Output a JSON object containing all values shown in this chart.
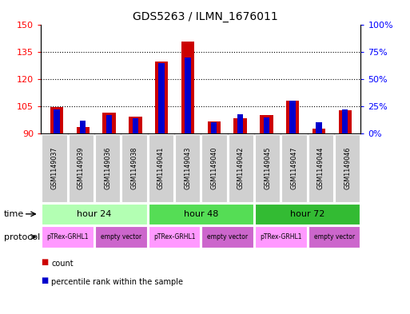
{
  "title": "GDS5263 / ILMN_1676011",
  "samples": [
    "GSM1149037",
    "GSM1149039",
    "GSM1149036",
    "GSM1149038",
    "GSM1149041",
    "GSM1149043",
    "GSM1149040",
    "GSM1149042",
    "GSM1149045",
    "GSM1149047",
    "GSM1149044",
    "GSM1149046"
  ],
  "count_values": [
    104.5,
    93.5,
    101.5,
    99.5,
    130.0,
    141.0,
    96.5,
    98.5,
    100.0,
    108.0,
    92.5,
    103.0
  ],
  "percentile_values": [
    22,
    12,
    17,
    14,
    65,
    70,
    10,
    18,
    15,
    30,
    10,
    22
  ],
  "ylim_left": [
    90,
    150
  ],
  "ylim_right": [
    0,
    100
  ],
  "yticks_left": [
    90,
    105,
    120,
    135,
    150
  ],
  "yticks_right": [
    0,
    25,
    50,
    75,
    100
  ],
  "bar_color_red": "#cc0000",
  "bar_color_blue": "#0000cc",
  "time_groups": [
    {
      "label": "hour 24",
      "start": 0,
      "end": 4,
      "color": "#b3ffb3"
    },
    {
      "label": "hour 48",
      "start": 4,
      "end": 8,
      "color": "#55dd55"
    },
    {
      "label": "hour 72",
      "start": 8,
      "end": 12,
      "color": "#33bb33"
    }
  ],
  "protocol_groups": [
    {
      "label": "pTRex-GRHL1",
      "start": 0,
      "end": 2,
      "color": "#ff99ff"
    },
    {
      "label": "empty vector",
      "start": 2,
      "end": 4,
      "color": "#cc66cc"
    },
    {
      "label": "pTRex-GRHL1",
      "start": 4,
      "end": 6,
      "color": "#ff99ff"
    },
    {
      "label": "empty vector",
      "start": 6,
      "end": 8,
      "color": "#cc66cc"
    },
    {
      "label": "pTRex-GRHL1",
      "start": 8,
      "end": 10,
      "color": "#ff99ff"
    },
    {
      "label": "empty vector",
      "start": 10,
      "end": 12,
      "color": "#cc66cc"
    }
  ],
  "bar_width": 0.5
}
